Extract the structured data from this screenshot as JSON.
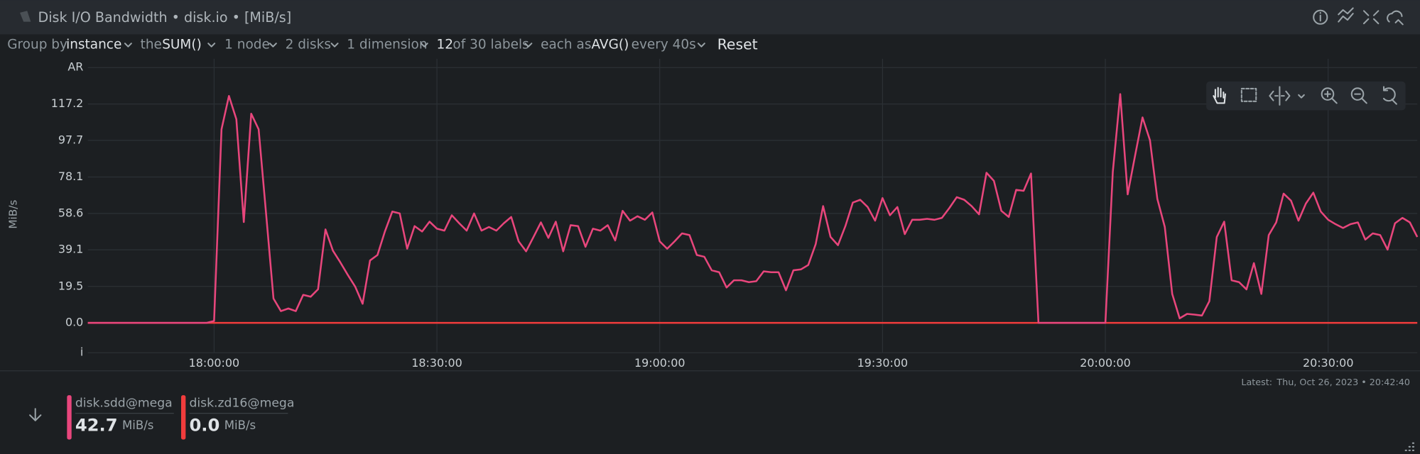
{
  "header": {
    "title": "Disk I/O Bandwidth • disk.io • [MiB/s]"
  },
  "toolbar": [
    "Group by",
    "instance",
    "the",
    "SUM()",
    "1 node",
    "2 disks",
    "1 dimension",
    "12",
    "of 30 labels",
    "each as",
    "AVG()",
    "every 40s",
    "Reset"
  ],
  "latest": {
    "label": "Latest:",
    "time": "Thu, Oct 26, 2023 • 20:42:40"
  },
  "legend": [
    {
      "value": "42.7",
      "unit": "MiB/s"
    },
    {
      "value": "0.0",
      "unit": "MiB/s"
    }
  ],
  "chart_data": {
    "type": "line",
    "ylabel": "MiB/s",
    "grid": true,
    "xlim": [
      "17:43:00",
      "20:42:00"
    ],
    "xticks": [
      "18:00:00",
      "18:30:00",
      "19:00:00",
      "19:30:00",
      "20:00:00",
      "20:30:00"
    ],
    "ylim": [
      -16,
      141.4
    ],
    "yticks": [
      {
        "value": -16,
        "label": "i"
      },
      {
        "value": 0,
        "label": "0.0"
      },
      19.5,
      39.1,
      58.6,
      78.1,
      97.7,
      117.2,
      {
        "value": 136.7,
        "label": "AR"
      }
    ],
    "x": [
      "17:43:00",
      "17:44:00",
      "17:45:00",
      "17:46:00",
      "17:47:00",
      "17:48:00",
      "17:49:00",
      "17:50:00",
      "17:51:00",
      "17:52:00",
      "17:53:00",
      "17:54:00",
      "17:55:00",
      "17:56:00",
      "17:57:00",
      "17:58:00",
      "17:59:00",
      "18:00:00",
      "18:01:00",
      "18:02:00",
      "18:03:00",
      "18:04:00",
      "18:05:00",
      "18:06:00",
      "18:07:00",
      "18:08:00",
      "18:09:00",
      "18:10:00",
      "18:11:00",
      "18:12:00",
      "18:13:00",
      "18:14:00",
      "18:15:00",
      "18:16:00",
      "18:17:00",
      "18:18:00",
      "18:19:00",
      "18:20:00",
      "18:21:00",
      "18:22:00",
      "18:23:00",
      "18:24:00",
      "18:25:00",
      "18:26:00",
      "18:27:00",
      "18:28:00",
      "18:29:00",
      "18:30:00",
      "18:31:00",
      "18:32:00",
      "18:33:00",
      "18:34:00",
      "18:35:00",
      "18:36:00",
      "18:37:00",
      "18:38:00",
      "18:39:00",
      "18:40:00",
      "18:41:00",
      "18:42:00",
      "18:43:00",
      "18:44:00",
      "18:45:00",
      "18:46:00",
      "18:47:00",
      "18:48:00",
      "18:49:00",
      "18:50:00",
      "18:51:00",
      "18:52:00",
      "18:53:00",
      "18:54:00",
      "18:55:00",
      "18:56:00",
      "18:57:00",
      "18:58:00",
      "18:59:00",
      "19:00:00",
      "19:01:00",
      "19:02:00",
      "19:03:00",
      "19:04:00",
      "19:05:00",
      "19:06:00",
      "19:07:00",
      "19:08:00",
      "19:09:00",
      "19:10:00",
      "19:11:00",
      "19:12:00",
      "19:13:00",
      "19:14:00",
      "19:15:00",
      "19:16:00",
      "19:17:00",
      "19:18:00",
      "19:19:00",
      "19:20:00",
      "19:21:00",
      "19:22:00",
      "19:23:00",
      "19:24:00",
      "19:25:00",
      "19:26:00",
      "19:27:00",
      "19:28:00",
      "19:29:00",
      "19:30:00",
      "19:31:00",
      "19:32:00",
      "19:33:00",
      "19:34:00",
      "19:35:00",
      "19:36:00",
      "19:37:00",
      "19:38:00",
      "19:39:00",
      "19:40:00",
      "19:41:00",
      "19:42:00",
      "19:43:00",
      "19:44:00",
      "19:45:00",
      "19:46:00",
      "19:47:00",
      "19:48:00",
      "19:49:00",
      "19:50:00",
      "19:51:00",
      "19:52:00",
      "19:53:00",
      "19:54:00",
      "19:55:00",
      "19:56:00",
      "19:57:00",
      "19:58:00",
      "19:59:00",
      "20:00:00",
      "20:01:00",
      "20:02:00",
      "20:03:00",
      "20:04:00",
      "20:05:00",
      "20:06:00",
      "20:07:00",
      "20:08:00",
      "20:09:00",
      "20:10:00",
      "20:11:00",
      "20:12:00",
      "20:13:00",
      "20:14:00",
      "20:15:00",
      "20:16:00",
      "20:17:00",
      "20:18:00",
      "20:19:00",
      "20:20:00",
      "20:21:00",
      "20:22:00",
      "20:23:00",
      "20:24:00",
      "20:25:00",
      "20:26:00",
      "20:27:00",
      "20:28:00",
      "20:29:00",
      "20:30:00",
      "20:31:00",
      "20:32:00",
      "20:33:00",
      "20:34:00",
      "20:35:00",
      "20:36:00",
      "20:37:00",
      "20:38:00",
      "20:39:00",
      "20:40:00",
      "20:41:00",
      "20:42:00"
    ],
    "series": [
      {
        "name": "disk.sdd@mega",
        "color": "#e8467c",
        "values": [
          0,
          0,
          0,
          0,
          0,
          0,
          0,
          0,
          0,
          0,
          0,
          0,
          0,
          0,
          0,
          0,
          0,
          1,
          103.6,
          121.5,
          109,
          54,
          112,
          103.6,
          58.6,
          13,
          6.3,
          7.7,
          6.3,
          15,
          14,
          18,
          50,
          38.7,
          32.4,
          25.7,
          19.4,
          10.2,
          33.4,
          36.3,
          48.9,
          59.6,
          58.6,
          39.7,
          51.8,
          48.9,
          54.2,
          50.4,
          49.4,
          57.6,
          53.3,
          49.4,
          58.6,
          49.4,
          51.3,
          49.4,
          53.3,
          56.7,
          43.6,
          38.3,
          46,
          53.8,
          45.5,
          54.2,
          38.3,
          52.3,
          51.8,
          40.7,
          50.4,
          49.4,
          52.3,
          44.1,
          60,
          54.7,
          57.1,
          55.2,
          59.1,
          43.6,
          39.7,
          43.6,
          47.9,
          47,
          36.3,
          35.4,
          28.1,
          27.1,
          18.9,
          22.8,
          22.8,
          21.8,
          22.3,
          27.6,
          27.1,
          27.1,
          17.4,
          28.1,
          28.6,
          31,
          42.1,
          62.5,
          46,
          41.6,
          51.8,
          64.4,
          65.9,
          62,
          54.7,
          66.8,
          57.6,
          62,
          47.5,
          55.2,
          55.2,
          55.7,
          55.2,
          56.2,
          61.5,
          67.3,
          65.9,
          62.5,
          58.1,
          80.4,
          76,
          60,
          56.7,
          71.2,
          70.7,
          80,
          0,
          0,
          0,
          0,
          0,
          0,
          0,
          0,
          0,
          0,
          80.9,
          122.5,
          68.8,
          89.6,
          110,
          97.8,
          66.3,
          51.3,
          15.5,
          2.4,
          4.8,
          4.4,
          3.9,
          11.6,
          46,
          54.2,
          22.8,
          21.8,
          17.9,
          32,
          15.5,
          47,
          53.8,
          69.2,
          65.4,
          54.7,
          63.9,
          69.7,
          59.6,
          55.2,
          52.8,
          50.8,
          52.8,
          53.8,
          44.6,
          47.9,
          47,
          39.2,
          53.3,
          56.2,
          53.8,
          46
        ]
      },
      {
        "name": "disk.zd16@mega",
        "color": "#f13c3c",
        "values": [
          0,
          0,
          0,
          0,
          0,
          0,
          0,
          0,
          0,
          0,
          0,
          0,
          0,
          0,
          0,
          0,
          0,
          0,
          0,
          0,
          0,
          0,
          0,
          0,
          0,
          0,
          0,
          0,
          0,
          0,
          0,
          0,
          0,
          0,
          0,
          0,
          0,
          0,
          0,
          0,
          0,
          0,
          0,
          0,
          0,
          0,
          0,
          0,
          0,
          0,
          0,
          0,
          0,
          0,
          0,
          0,
          0,
          0,
          0,
          0,
          0,
          0,
          0,
          0,
          0,
          0,
          0,
          0,
          0,
          0,
          0,
          0,
          0,
          0,
          0,
          0,
          0,
          0,
          0,
          0,
          0,
          0,
          0,
          0,
          0,
          0,
          0,
          0,
          0,
          0,
          0,
          0,
          0,
          0,
          0,
          0,
          0,
          0,
          0,
          0,
          0,
          0,
          0,
          0,
          0,
          0,
          0,
          0,
          0,
          0,
          0,
          0,
          0,
          0,
          0,
          0,
          0,
          0,
          0,
          0,
          0,
          0,
          0,
          0,
          0,
          0,
          0,
          0,
          0,
          0,
          0,
          0,
          0,
          0,
          0,
          0,
          0,
          0,
          0,
          0,
          0,
          0,
          0,
          0,
          0,
          0,
          0,
          0,
          0,
          0,
          0,
          0,
          0,
          0,
          0,
          0,
          0,
          0,
          0,
          0,
          0,
          0,
          0,
          0,
          0,
          0,
          0,
          0,
          0,
          0,
          0,
          0,
          0,
          0,
          0,
          0,
          0,
          0,
          0,
          0
        ]
      }
    ]
  }
}
